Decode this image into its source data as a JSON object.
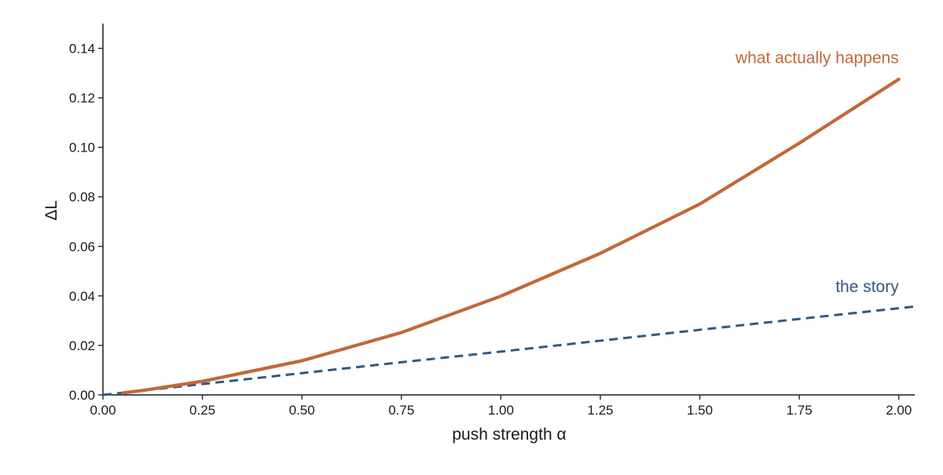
{
  "chart_data": {
    "type": "line",
    "title": "",
    "xlabel": "push strength  α",
    "ylabel": "ΔL",
    "xlim": [
      0,
      2.04
    ],
    "ylim": [
      0,
      0.15
    ],
    "xticks": [
      0.0,
      0.25,
      0.5,
      0.75,
      1.0,
      1.25,
      1.5,
      1.75,
      2.0
    ],
    "xtick_labels": [
      "0.00",
      "0.25",
      "0.50",
      "0.75",
      "1.00",
      "1.25",
      "1.50",
      "1.75",
      "2.00"
    ],
    "yticks": [
      0.0,
      0.02,
      0.04,
      0.06,
      0.08,
      0.1,
      0.12,
      0.14
    ],
    "ytick_labels": [
      "0.00",
      "0.02",
      "0.04",
      "0.06",
      "0.08",
      "0.10",
      "0.12",
      "0.14"
    ],
    "grid": false,
    "legend": "none",
    "series": [
      {
        "name": "what actually happens",
        "color": "#c0693a",
        "style": "solid",
        "label_anchor": [
          2.0,
          0.134
        ],
        "x": [
          0.05,
          0.1,
          0.25,
          0.5,
          0.75,
          1.0,
          1.25,
          1.5,
          1.75,
          2.0
        ],
        "y": [
          0.0008,
          0.0018,
          0.0055,
          0.0138,
          0.0252,
          0.0399,
          0.0572,
          0.0771,
          0.1017,
          0.1275
        ]
      },
      {
        "name": "the story",
        "color": "#2f5a82",
        "style": "dashed",
        "label_anchor": [
          2.0,
          0.0415
        ],
        "x": [
          0.0,
          0.25,
          0.5,
          0.75,
          1.0,
          1.25,
          1.5,
          1.75,
          2.04
        ],
        "y": [
          0.0,
          0.0044,
          0.0088,
          0.0132,
          0.0175,
          0.0219,
          0.0263,
          0.0307,
          0.0357
        ]
      }
    ]
  }
}
